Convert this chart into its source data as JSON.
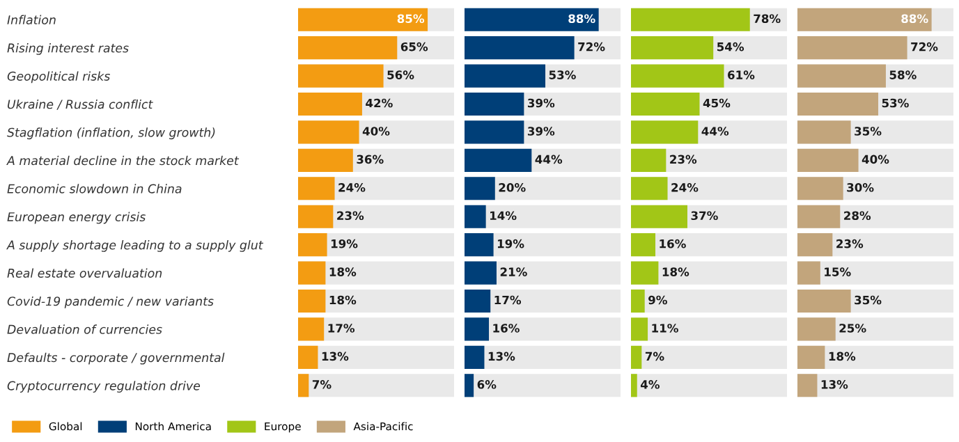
{
  "chart_data": [
    {
      "type": "bar",
      "orientation": "horizontal",
      "legend": "bottom",
      "tick_labels": "y",
      "grid": false,
      "categories": [
        "Inflation",
        "Rising interest rates",
        "Geopolitical risks",
        "Ukraine / Russia conflict",
        "Stagflation (inflation, slow growth)",
        "A material decline in the stock market",
        "Economic slowdown in China",
        "European energy crisis",
        "A supply shortage leading to a supply glut",
        "Real estate overvaluation",
        "Covid-19 pandemic / new variants",
        "Devaluation of currencies",
        "Defaults - corporate / governmental",
        "Cryptocurrency regulation drive"
      ],
      "series": [
        {
          "name": "Global",
          "color": "#f39c12",
          "values": [
            85,
            65,
            56,
            42,
            40,
            36,
            24,
            23,
            19,
            18,
            18,
            17,
            13,
            7
          ],
          "value_labels": [
            "85%",
            "65%",
            "56%",
            "42%",
            "40%",
            "36%",
            "24%",
            "23%",
            "19%",
            "18%",
            "18%",
            "17%",
            "13%",
            "7%"
          ]
        }
      ]
    },
    {
      "type": "bar",
      "orientation": "horizontal",
      "legend": "bottom",
      "tick_labels": false,
      "grid": false,
      "categories": [
        null,
        null,
        null,
        null,
        null,
        null,
        null,
        null,
        null,
        null,
        null,
        null,
        null,
        null
      ],
      "series": [
        {
          "name": "North America",
          "color": "#003f78",
          "values": [
            88,
            72,
            53,
            39,
            39,
            44,
            20,
            14,
            19,
            21,
            17,
            16,
            13,
            6
          ],
          "value_labels": [
            "88%",
            "72%",
            "53%",
            "39%",
            "39%",
            "44%",
            "20%",
            "14%",
            "19%",
            "21%",
            "17%",
            "16%",
            "13%",
            "6%"
          ]
        }
      ]
    },
    {
      "type": "bar",
      "orientation": "horizontal",
      "legend": "bottom",
      "tick_labels": false,
      "grid": false,
      "categories": [
        null,
        null,
        null,
        null,
        null,
        null,
        null,
        null,
        null,
        null,
        null,
        null,
        null,
        null
      ],
      "series": [
        {
          "name": "Europe",
          "color": "#a2c617",
          "values": [
            78,
            54,
            61,
            45,
            44,
            23,
            24,
            37,
            16,
            18,
            9,
            11,
            7,
            4
          ],
          "value_labels": [
            "78%",
            "54%",
            "61%",
            "45%",
            "44%",
            "23%",
            "24%",
            "37%",
            "16%",
            "18%",
            "9%",
            "11%",
            "7%",
            "4%"
          ]
        }
      ]
    },
    {
      "type": "bar",
      "orientation": "horizontal",
      "legend": "bottom",
      "tick_labels": false,
      "grid": false,
      "categories": [
        null,
        null,
        null,
        null,
        null,
        null,
        null,
        null,
        null,
        null,
        null,
        null,
        null,
        null
      ],
      "series": [
        {
          "name": "Asia-Pacific",
          "color": "#c2a57c",
          "values": [
            88,
            72,
            58,
            53,
            35,
            40,
            30,
            28,
            23,
            15,
            35,
            25,
            18,
            13
          ],
          "value_labels": [
            "88%",
            "72%",
            "58%",
            "53%",
            "35%",
            "40%",
            "30%",
            "28%",
            "23%",
            "15%",
            "35%",
            "25%",
            "18%",
            "13%"
          ]
        }
      ]
    }
  ]
}
